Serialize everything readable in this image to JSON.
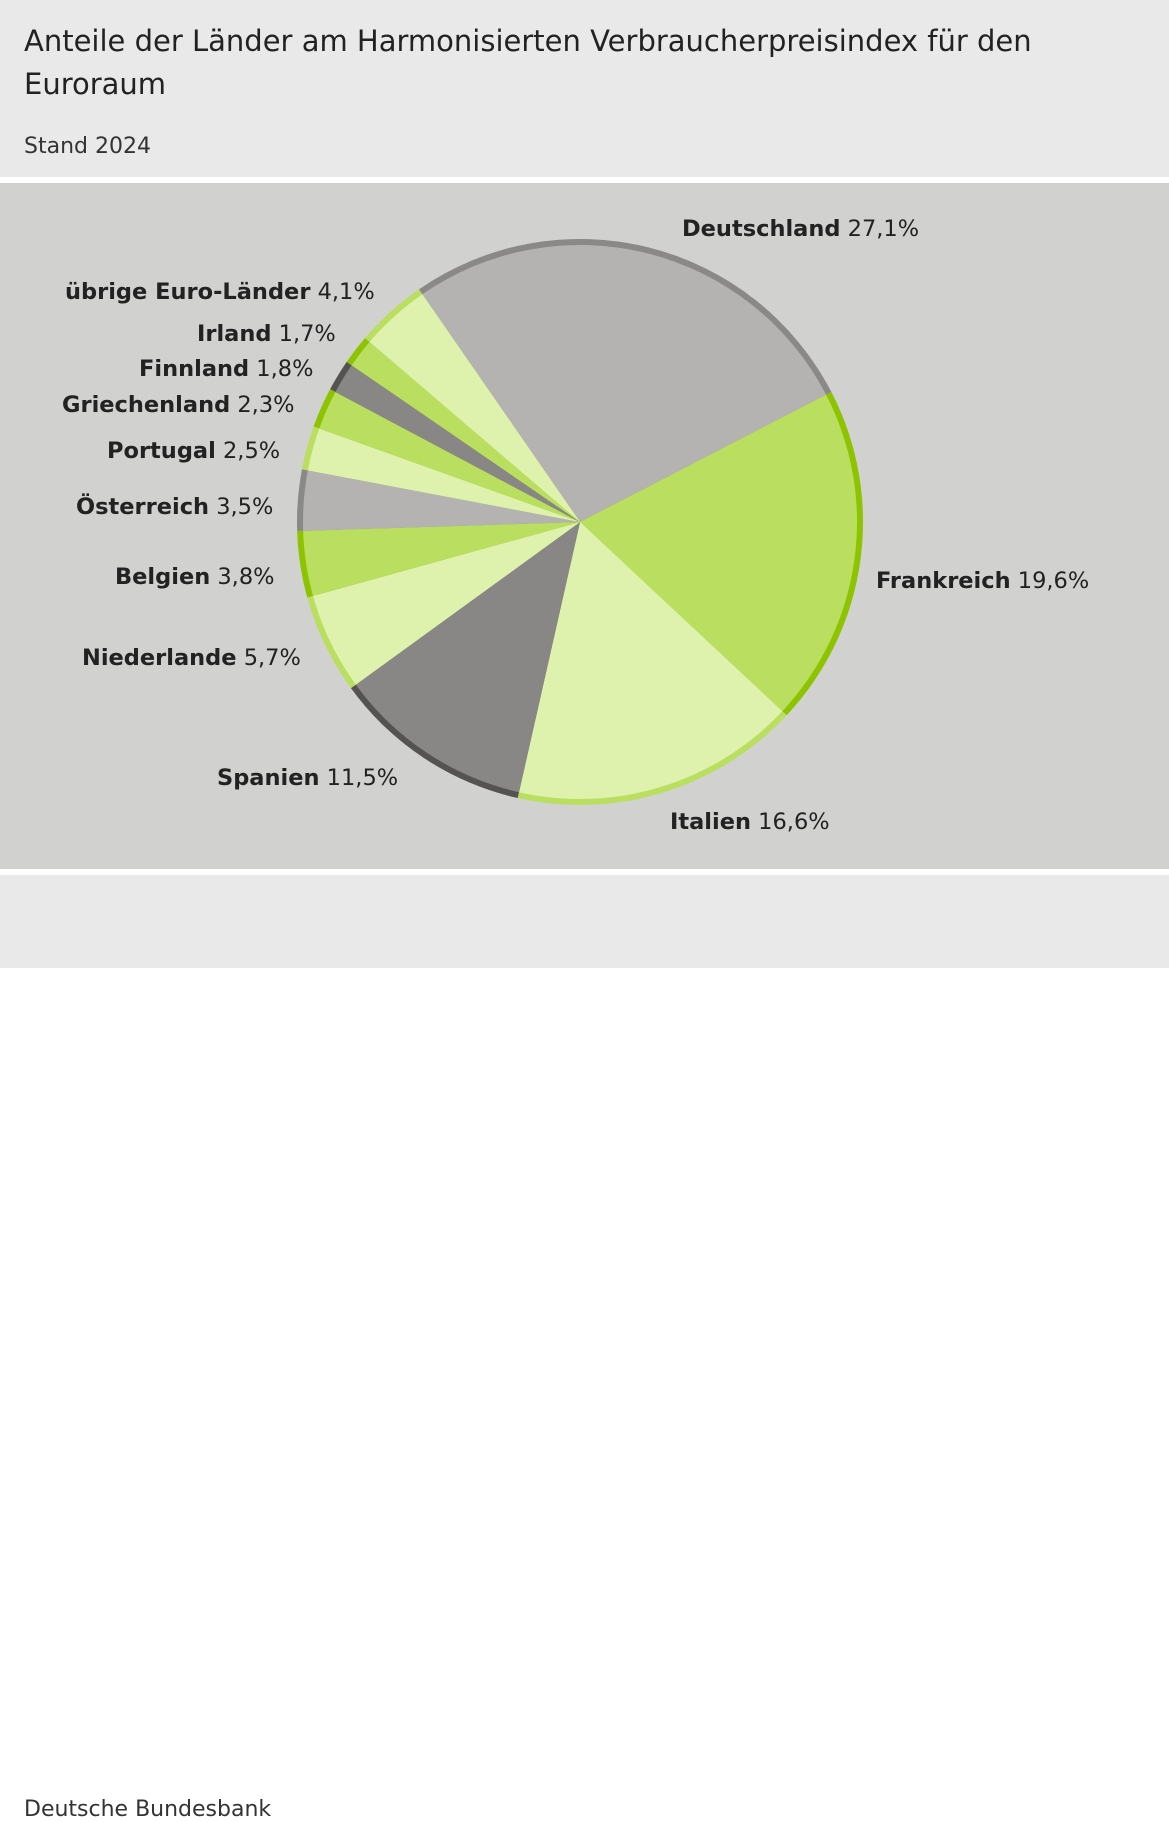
{
  "header": {
    "title": "Anteile der Länder am Harmonisierten Verbraucherpreisindex für den Euroraum",
    "subtitle": "Stand 2024"
  },
  "footer": {
    "source": "Deutsche Bundesbank"
  },
  "chart_data": {
    "type": "pie",
    "title": "Anteile der Länder am Harmonisierten Verbraucherpreisindex für den Euroraum",
    "subtitle": "Stand 2024",
    "unit": "%",
    "slices": [
      {
        "name": "Deutschland",
        "value": 27.1,
        "label": "27,1%",
        "fill": "#b4b3b1",
        "ring": "#8a8988"
      },
      {
        "name": "Frankreich",
        "value": 19.6,
        "label": "19,6%",
        "fill": "#bade60",
        "ring": "#8dc300"
      },
      {
        "name": "Italien",
        "value": 16.6,
        "label": "16,6%",
        "fill": "#dff2ad",
        "ring": "#bade60"
      },
      {
        "name": "Spanien",
        "value": 11.5,
        "label": "11,5%",
        "fill": "#888786",
        "ring": "#545352"
      },
      {
        "name": "Niederlande",
        "value": 5.7,
        "label": "5,7%",
        "fill": "#dff2ad",
        "ring": "#bade60"
      },
      {
        "name": "Belgien",
        "value": 3.8,
        "label": "3,8%",
        "fill": "#bade60",
        "ring": "#8dc300"
      },
      {
        "name": "Österreich",
        "value": 3.5,
        "label": "3,5%",
        "fill": "#b4b3b1",
        "ring": "#8a8988"
      },
      {
        "name": "Portugal",
        "value": 2.5,
        "label": "2,5%",
        "fill": "#dff2ad",
        "ring": "#bade60"
      },
      {
        "name": "Griechenland",
        "value": 2.3,
        "label": "2,3%",
        "fill": "#bade60",
        "ring": "#8dc300"
      },
      {
        "name": "Finnland",
        "value": 1.8,
        "label": "1,8%",
        "fill": "#888786",
        "ring": "#545352"
      },
      {
        "name": "Irland",
        "value": 1.7,
        "label": "1,7%",
        "fill": "#bade60",
        "ring": "#8dc300"
      },
      {
        "name": "übrige Euro-Länder",
        "value": 4.1,
        "label": "4,1%",
        "fill": "#dff2ad",
        "ring": "#bade60"
      }
    ]
  }
}
